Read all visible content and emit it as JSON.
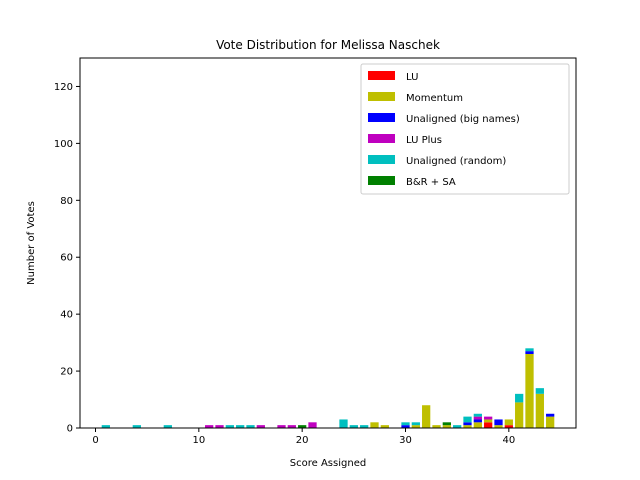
{
  "chart_data": {
    "type": "bar",
    "stacked": true,
    "title": "Vote Distribution for Melissa Naschek",
    "xlabel": "Score Assigned",
    "ylabel": "Number of Votes",
    "xlim": [
      -1.5,
      46.5
    ],
    "ylim": [
      0,
      130
    ],
    "xticks": [
      0,
      10,
      20,
      30,
      40
    ],
    "yticks": [
      0,
      20,
      40,
      60,
      80,
      100,
      120
    ],
    "grid": false,
    "legend_position": "top-right",
    "x": [
      1,
      4,
      7,
      11,
      12,
      13,
      14,
      15,
      16,
      18,
      19,
      20,
      21,
      24,
      25,
      26,
      27,
      28,
      30,
      31,
      32,
      33,
      34,
      35,
      36,
      37,
      38,
      39,
      40,
      41,
      42,
      43,
      44
    ],
    "series": [
      {
        "name": "LU",
        "color": "#ff0000",
        "values": [
          0,
          0,
          0,
          0,
          0,
          0,
          0,
          0,
          0,
          0,
          0,
          0,
          0,
          0,
          0,
          0,
          0,
          0,
          0,
          0,
          0,
          0,
          0,
          0,
          0,
          0,
          2,
          0,
          1,
          0,
          0,
          0,
          0
        ]
      },
      {
        "name": "Momentum",
        "color": "#bfbf00",
        "values": [
          0,
          0,
          0,
          0,
          0,
          0,
          0,
          0,
          0,
          0,
          0,
          0,
          0,
          0,
          0,
          0,
          2,
          1,
          0,
          1,
          8,
          1,
          1,
          0,
          1,
          2,
          1,
          1,
          2,
          9,
          26,
          12,
          4
        ]
      },
      {
        "name": "Unaligned (big names)",
        "color": "#0000ff",
        "values": [
          0,
          0,
          0,
          0,
          0,
          0,
          0,
          0,
          0,
          0,
          0,
          0,
          0,
          0,
          0,
          0,
          0,
          0,
          1,
          0,
          0,
          0,
          0,
          0,
          1,
          1,
          0,
          2,
          0,
          0,
          1,
          0,
          1
        ]
      },
      {
        "name": "LU Plus",
        "color": "#bf00bf",
        "values": [
          0,
          0,
          0,
          1,
          1,
          0,
          0,
          0,
          1,
          1,
          1,
          0,
          2,
          0,
          0,
          0,
          0,
          0,
          0,
          0,
          0,
          0,
          0,
          0,
          0,
          1,
          1,
          0,
          0,
          0,
          0,
          0,
          0
        ]
      },
      {
        "name": "Unaligned (random)",
        "color": "#00bfbf",
        "values": [
          1,
          1,
          1,
          0,
          0,
          1,
          1,
          1,
          0,
          0,
          0,
          0,
          0,
          3,
          1,
          1,
          0,
          0,
          1,
          1,
          0,
          0,
          0,
          1,
          2,
          1,
          0,
          0,
          0,
          3,
          1,
          2,
          0
        ]
      },
      {
        "name": "B&R + SA",
        "color": "#008000",
        "values": [
          0,
          0,
          0,
          0,
          0,
          0,
          0,
          0,
          0,
          0,
          0,
          1,
          0,
          0,
          0,
          0,
          0,
          0,
          0,
          0,
          0,
          0,
          1,
          0,
          0,
          0,
          0,
          0,
          0,
          0,
          0,
          0,
          0
        ]
      }
    ]
  }
}
